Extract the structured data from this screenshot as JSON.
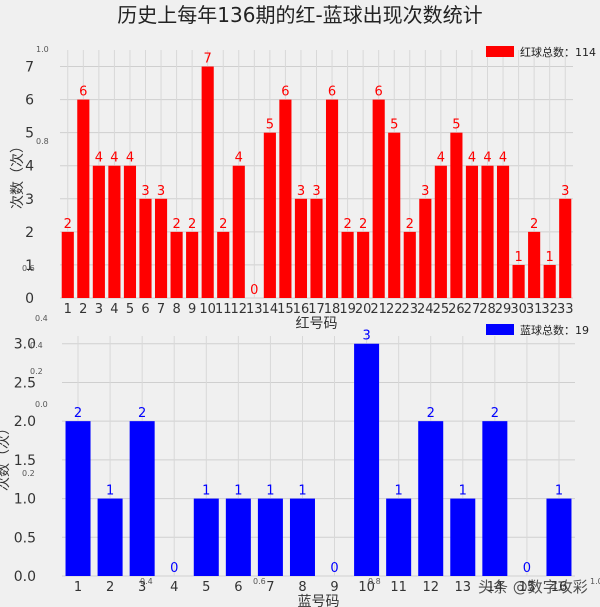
{
  "title": "历史上每年136期的红-蓝球出现次数统计",
  "watermark": "头条 @数字攻彩",
  "chart_data": [
    {
      "type": "bar",
      "categories": [
        "1",
        "2",
        "3",
        "4",
        "5",
        "6",
        "7",
        "8",
        "9",
        "10",
        "11",
        "12",
        "13",
        "14",
        "15",
        "16",
        "17",
        "18",
        "19",
        "20",
        "21",
        "22",
        "23",
        "24",
        "25",
        "26",
        "27",
        "28",
        "29",
        "30",
        "31",
        "32",
        "33"
      ],
      "values": [
        2,
        6,
        4,
        4,
        4,
        3,
        3,
        2,
        2,
        7,
        2,
        4,
        0,
        5,
        6,
        3,
        3,
        6,
        2,
        2,
        6,
        5,
        2,
        3,
        4,
        5,
        4,
        4,
        4,
        1,
        2,
        1,
        3
      ],
      "series": [
        {
          "name": "红球总数：114",
          "color": "#ff0000"
        }
      ],
      "xlabel": "红号码",
      "ylabel": "次数（次）",
      "ylim": [
        0,
        7.5
      ],
      "yticks": [
        "0",
        "1",
        "2",
        "3",
        "4",
        "5",
        "6",
        "7"
      ],
      "ghost_ticks": [
        "1.0",
        "0.8",
        "0.6",
        "0.4"
      ],
      "grid": true,
      "legend": "top-right"
    },
    {
      "type": "bar",
      "categories": [
        "1",
        "2",
        "3",
        "4",
        "5",
        "6",
        "7",
        "8",
        "9",
        "10",
        "11",
        "12",
        "13",
        "14",
        "15",
        "16"
      ],
      "values": [
        2,
        1,
        2,
        0,
        1,
        1,
        1,
        1,
        0,
        3,
        1,
        2,
        1,
        2,
        0,
        1
      ],
      "series": [
        {
          "name": "蓝球总数：19",
          "color": "#0000ff"
        }
      ],
      "xlabel": "蓝号码",
      "ylabel": "次数（次）",
      "ylim": [
        0,
        3.1
      ],
      "yticks": [
        "0.0",
        "0.5",
        "1.0",
        "1.5",
        "2.0",
        "2.5",
        "3.0"
      ],
      "ghost_ticks": [
        "0.4",
        "0.2",
        "0.0",
        "0.2",
        "0.4",
        "0.6",
        "0.8",
        "1.0"
      ],
      "grid": true,
      "legend": "top-right"
    }
  ]
}
